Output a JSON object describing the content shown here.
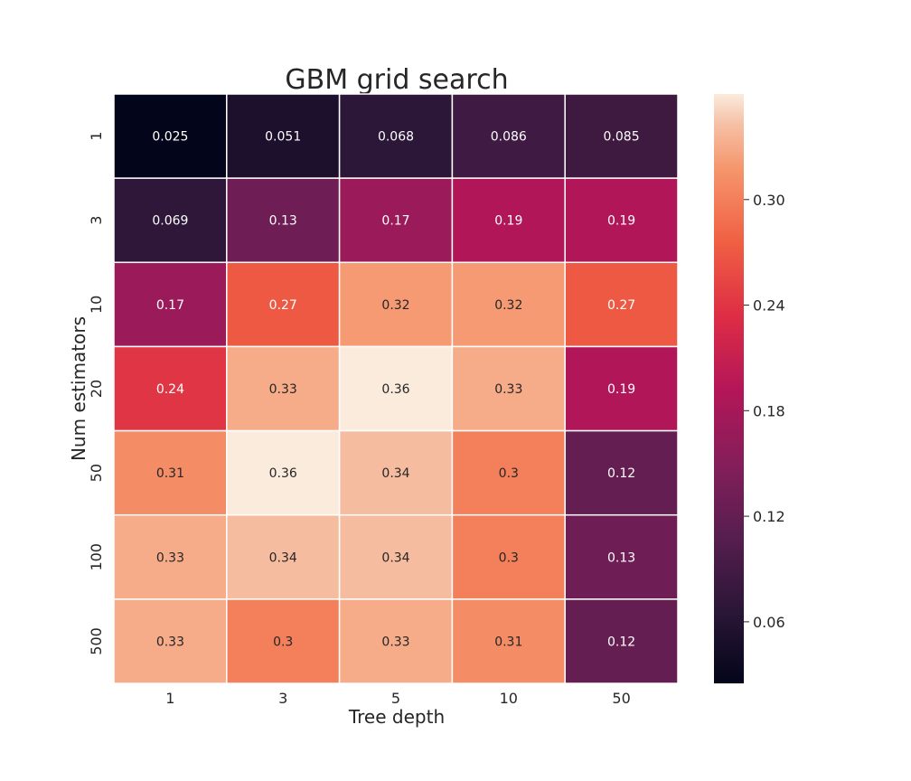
{
  "chart_data": {
    "type": "heatmap",
    "title": "GBM grid search",
    "xlabel": "Tree depth",
    "ylabel": "Num estimators",
    "x_categories": [
      "1",
      "3",
      "5",
      "10",
      "50"
    ],
    "y_categories": [
      "1",
      "3",
      "10",
      "20",
      "50",
      "100",
      "500"
    ],
    "values": [
      [
        0.025,
        0.051,
        0.068,
        0.086,
        0.085
      ],
      [
        0.069,
        0.13,
        0.17,
        0.19,
        0.19
      ],
      [
        0.17,
        0.27,
        0.32,
        0.32,
        0.27
      ],
      [
        0.24,
        0.33,
        0.36,
        0.33,
        0.19
      ],
      [
        0.31,
        0.36,
        0.34,
        0.3,
        0.12
      ],
      [
        0.33,
        0.34,
        0.34,
        0.3,
        0.13
      ],
      [
        0.33,
        0.3,
        0.33,
        0.31,
        0.12
      ]
    ],
    "value_labels": [
      [
        "0.025",
        "0.051",
        "0.068",
        "0.086",
        "0.085"
      ],
      [
        "0.069",
        "0.13",
        "0.17",
        "0.19",
        "0.19"
      ],
      [
        "0.17",
        "0.27",
        "0.32",
        "0.32",
        "0.27"
      ],
      [
        "0.24",
        "0.33",
        "0.36",
        "0.33",
        "0.19"
      ],
      [
        "0.31",
        "0.36",
        "0.34",
        "0.3",
        "0.12"
      ],
      [
        "0.33",
        "0.34",
        "0.34",
        "0.3",
        "0.13"
      ],
      [
        "0.33",
        "0.3",
        "0.33",
        "0.31",
        "0.12"
      ]
    ],
    "colormap": "rocket",
    "vmin": 0.025,
    "vmax": 0.36,
    "colorbar": {
      "ticks": [
        0.06,
        0.12,
        0.18,
        0.24,
        0.3
      ],
      "tick_labels": [
        "0.06",
        "0.12",
        "0.18",
        "0.24",
        "0.30"
      ],
      "placement": "right"
    },
    "grid": false,
    "cell_separator_color": "#ffffff"
  }
}
